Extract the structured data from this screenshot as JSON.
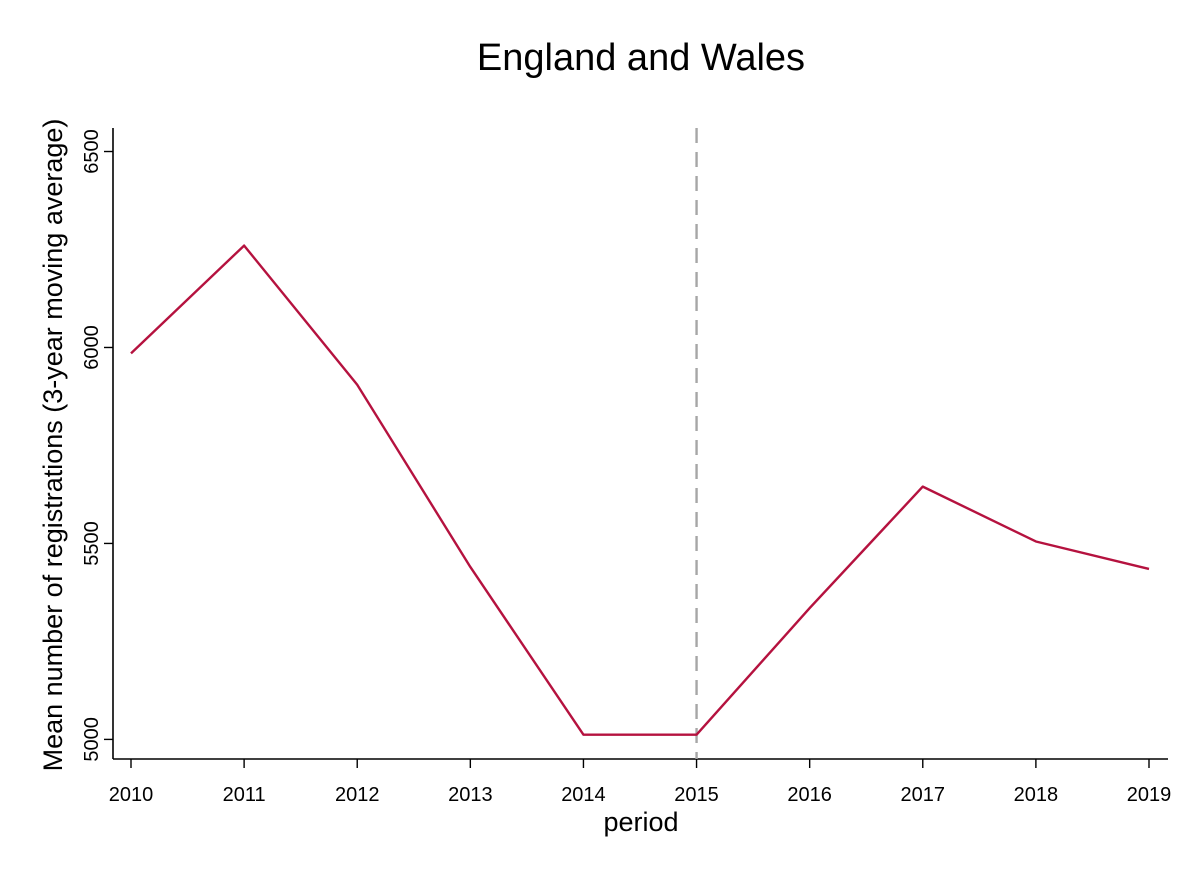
{
  "chart_data": {
    "type": "line",
    "title": "England and Wales",
    "xlabel": "period",
    "ylabel": "Mean number of registrations (3-year moving average)",
    "x": [
      2010,
      2011,
      2012,
      2013,
      2014,
      2015,
      2016,
      2017,
      2018,
      2019
    ],
    "series": [
      {
        "values": [
          5985,
          6260,
          5905,
          5440,
          5012,
          5012,
          5335,
          5645,
          5505,
          5435
        ]
      }
    ],
    "xlim": [
      2010,
      2019
    ],
    "ylim": [
      4950,
      6560
    ],
    "y_ticks": [
      5000,
      5500,
      6000,
      6500
    ],
    "reference_line": {
      "x": 2015,
      "style": "dashed"
    },
    "grid": false,
    "legend": "none",
    "colors": {
      "series": "#b5123f",
      "reference_line": "#a6a6a6",
      "axes": "#000000"
    }
  }
}
